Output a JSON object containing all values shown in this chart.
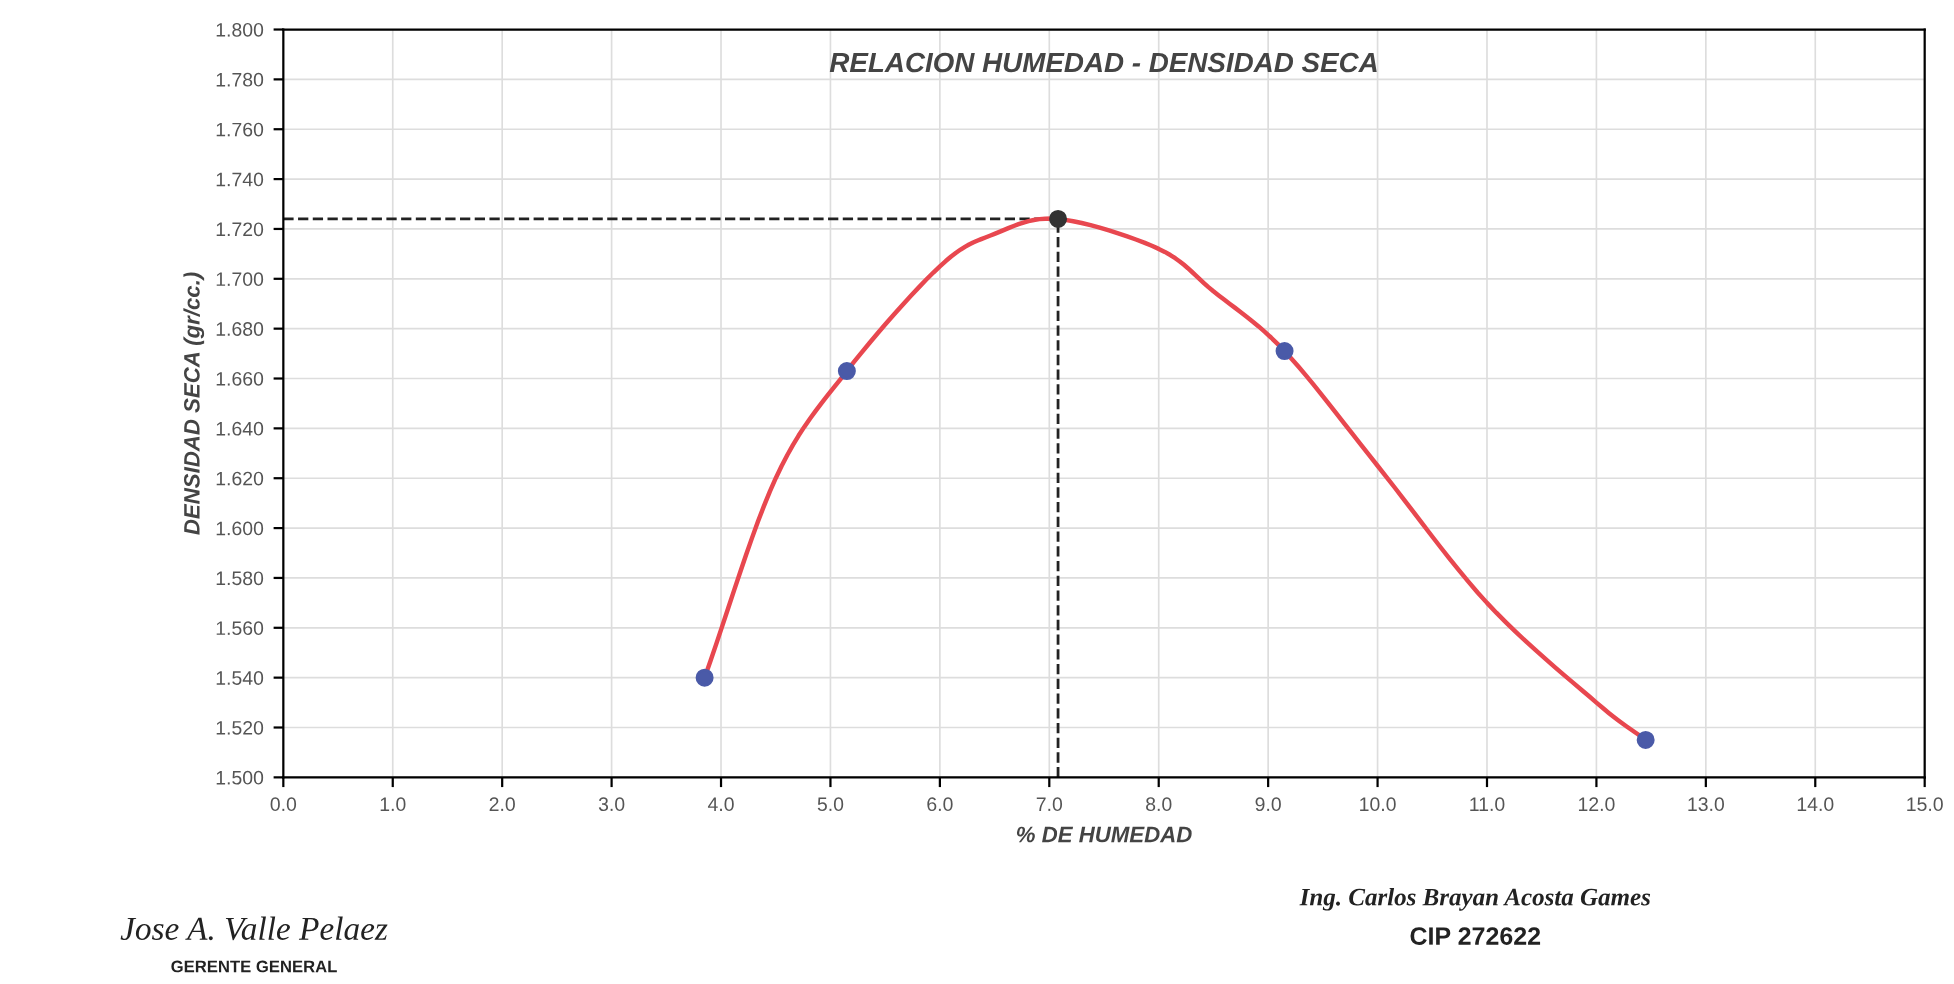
{
  "chart_data": {
    "type": "scatter",
    "title": "RELACION HUMEDAD - DENSIDAD SECA",
    "xlabel": "% DE HUMEDAD",
    "ylabel": "DENSIDAD SECA (gr/cc.)",
    "xlim": [
      0,
      15
    ],
    "xticks": [
      {
        "value": 0,
        "label": "0.0"
      },
      {
        "value": 1,
        "label": "1.0"
      },
      {
        "value": 2,
        "label": "2.0"
      },
      {
        "value": 3,
        "label": "3.0"
      },
      {
        "value": 4,
        "label": "4.0"
      },
      {
        "value": 5,
        "label": "5.0"
      },
      {
        "value": 6,
        "label": "6.0"
      },
      {
        "value": 7,
        "label": "7.0"
      },
      {
        "value": 8,
        "label": "8.0"
      },
      {
        "value": 9,
        "label": "9.0"
      },
      {
        "value": 10,
        "label": "10.0"
      },
      {
        "value": 11,
        "label": "11.0"
      },
      {
        "value": 12,
        "label": "12.0"
      },
      {
        "value": 13,
        "label": "13.0"
      },
      {
        "value": 14,
        "label": "14.0"
      },
      {
        "value": 15,
        "label": "15.0"
      }
    ],
    "ylim": [
      1.5,
      1.8
    ],
    "yticks": [
      {
        "value": 1.5,
        "label": "1.500"
      },
      {
        "value": 1.52,
        "label": "1.520"
      },
      {
        "value": 1.54,
        "label": "1.540"
      },
      {
        "value": 1.56,
        "label": "1.560"
      },
      {
        "value": 1.58,
        "label": "1.580"
      },
      {
        "value": 1.6,
        "label": "1.600"
      },
      {
        "value": 1.62,
        "label": "1.620"
      },
      {
        "value": 1.64,
        "label": "1.640"
      },
      {
        "value": 1.66,
        "label": "1.660"
      },
      {
        "value": 1.68,
        "label": "1.680"
      },
      {
        "value": 1.7,
        "label": "1.700"
      },
      {
        "value": 1.72,
        "label": "1.720"
      },
      {
        "value": 1.74,
        "label": "1.740"
      },
      {
        "value": 1.76,
        "label": "1.760"
      },
      {
        "value": 1.78,
        "label": "1.780"
      },
      {
        "value": 1.8,
        "label": "1.800"
      }
    ],
    "grid": true,
    "legend": false,
    "series": [
      {
        "type": "line",
        "color": "#e8474f",
        "marker": "none",
        "line_style": "solid",
        "x": [
          3.85,
          4.5,
          5.15,
          6.0,
          6.5,
          7.08,
          8.0,
          8.5,
          9.15,
          10.0,
          11.0,
          12.0,
          12.45
        ],
        "values": [
          1.54,
          1.62,
          1.663,
          1.705,
          1.718,
          1.724,
          1.712,
          1.695,
          1.671,
          1.625,
          1.57,
          1.53,
          1.515
        ]
      },
      {
        "color": "#4a5aa8",
        "marker": "circle",
        "x": [
          3.85,
          5.15,
          9.15,
          12.45
        ],
        "values": [
          1.54,
          1.663,
          1.671,
          1.515
        ]
      },
      {
        "type": "scatter",
        "color": "#333333",
        "marker": "circle",
        "x": [
          7.08
        ],
        "values": [
          1.724
        ]
      }
    ],
    "ref_lines": [
      {
        "axis": "x",
        "value": 7.08,
        "label": null,
        "color": "#222222",
        "line_style": "dashed"
      },
      {
        "axis": "y",
        "value": 1.724,
        "label": null,
        "color": "#222222",
        "line_style": "dashed"
      }
    ],
    "annotations": [
      "Jose A. Valle Pelaez",
      "GERENTE GENERAL",
      "Ing. Carlos Brayan Acosta Games",
      "CIP 272622"
    ]
  }
}
